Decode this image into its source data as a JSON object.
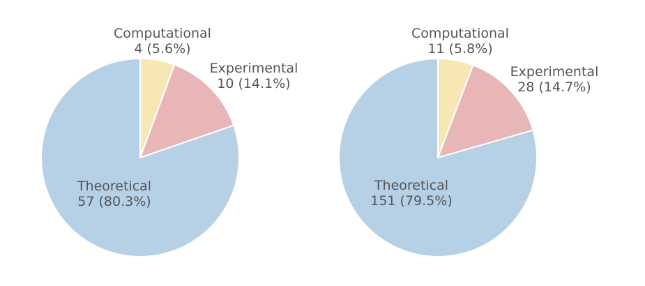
{
  "chart_data": [
    {
      "type": "pie",
      "title": "",
      "categories": [
        "Computational",
        "Experimental",
        "Theoretical"
      ],
      "values": [
        4,
        10,
        57
      ],
      "percent_labels": [
        "4 (5.6%)",
        "10 (14.1%)",
        "57 (80.3%)"
      ],
      "colors": [
        "#f7e7b5",
        "#e8b6b6",
        "#b6d0e6"
      ],
      "start_angle": 90,
      "direction": "clockwise"
    },
    {
      "type": "pie",
      "title": "",
      "categories": [
        "Computational",
        "Experimental",
        "Theoretical"
      ],
      "values": [
        11,
        28,
        151
      ],
      "percent_labels": [
        "11 (5.8%)",
        "28 (14.7%)",
        "151 (79.5%)"
      ],
      "colors": [
        "#f7e7b5",
        "#e8b6b6",
        "#b6d0e6"
      ],
      "start_angle": 90,
      "direction": "clockwise"
    }
  ]
}
